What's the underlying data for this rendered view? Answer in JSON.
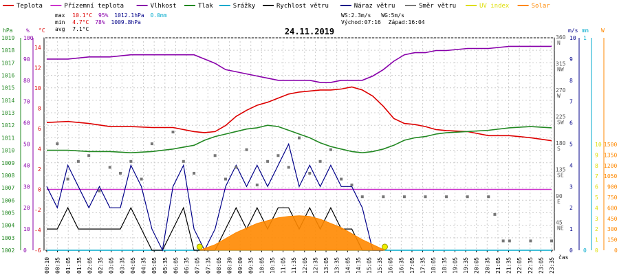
{
  "legend": [
    {
      "label": "Teplota",
      "color": "#dd0000"
    },
    {
      "label": "Přízemní teplota",
      "color": "#cc33cc"
    },
    {
      "label": "Vlhkost",
      "color": "#8800aa"
    },
    {
      "label": "Tlak",
      "color": "#228822"
    },
    {
      "label": "Srážky",
      "color": "#00aacc"
    },
    {
      "label": "Rychlost větru",
      "color": "#000000"
    },
    {
      "label": "Náraz větru",
      "color": "#000088"
    },
    {
      "label": "Směr větru",
      "color": "#777777"
    },
    {
      "label": "UV index",
      "color": "#dddd00"
    },
    {
      "label": "Solar",
      "color": "#ff8800"
    }
  ],
  "stats": {
    "max_label": "max",
    "min_label": "min",
    "avg_label": "avg",
    "temp_max": "10.1°C",
    "hum_max": "95%",
    "press_max": "1012.1hPa",
    "rain_max": "0.0mm",
    "temp_min": "4.7°C",
    "hum_min": "78%",
    "press_min": "1009.8hPa",
    "temp_avg": "7.1°C",
    "ws": "WS:2.3m/s",
    "wg": "WG:5m/s",
    "sunrise": "Východ:07:16",
    "sunset": "Západ:16:04"
  },
  "chart_data": {
    "type": "line",
    "title": "24.11.2019",
    "xlabel": "čas",
    "x_ticks": [
      "00:10",
      "00:35",
      "01:05",
      "01:35",
      "02:05",
      "02:35",
      "03:05",
      "03:35",
      "04:05",
      "04:35",
      "05:05",
      "05:35",
      "06:05",
      "06:35",
      "07:05",
      "07:35",
      "08:05",
      "08:39",
      "09:09",
      "09:35",
      "10:05",
      "10:35",
      "11:05",
      "11:35",
      "12:05",
      "12:35",
      "13:05",
      "13:35",
      "14:05",
      "14:35",
      "15:05",
      "15:35",
      "16:05",
      "16:35",
      "17:05",
      "17:35",
      "18:05",
      "18:35",
      "19:05",
      "19:35",
      "20:05",
      "20:35",
      "21:05",
      "21:35",
      "22:05",
      "22:35",
      "23:05",
      "23:35"
    ],
    "axes": {
      "pressure": {
        "unit": "hPa",
        "range": [
          1002,
          1019
        ],
        "ticks": [
          "1019",
          "1018",
          "1017",
          "1016",
          "1015",
          "1014",
          "1013",
          "1012",
          "1011",
          "1010",
          "1009",
          "1008",
          "1007",
          "1006",
          "1005",
          "1004",
          "1003",
          "1002"
        ]
      },
      "humidity": {
        "unit": "%",
        "range": [
          0,
          100
        ],
        "ticks": [
          "100",
          "90",
          "80",
          "70",
          "60",
          "50",
          "40",
          "30",
          "20",
          "10",
          "0"
        ]
      },
      "temperature": {
        "unit": "°C",
        "range": [
          -6,
          14
        ],
        "ticks": [
          "14",
          "12",
          "10",
          "8",
          "6",
          "4",
          "2",
          "0",
          "-2",
          "-4",
          "-6"
        ]
      },
      "direction": {
        "ticks": [
          {
            "deg": "360",
            "dir": "N"
          },
          {
            "deg": "315",
            "dir": "NW"
          },
          {
            "deg": "270",
            "dir": "W"
          },
          {
            "deg": "225",
            "dir": "SW"
          },
          {
            "deg": "180",
            "dir": "S"
          },
          {
            "deg": "135",
            "dir": "SE"
          },
          {
            "deg": "90",
            "dir": "E"
          },
          {
            "deg": "45",
            "dir": "NE"
          }
        ]
      },
      "wind": {
        "unit": "m/s",
        "range": [
          0,
          10
        ],
        "ticks": [
          "10",
          "9",
          "8",
          "7",
          "6",
          "5",
          "4",
          "3",
          "2",
          "1",
          "0"
        ]
      },
      "rain": {
        "unit": "mm",
        "ticks": [
          "1",
          "0"
        ]
      },
      "solar": {
        "unit": "W",
        "range": [
          0,
          2100
        ],
        "ticks": [
          "1500",
          "1350",
          "1200",
          "1050",
          "900",
          "750",
          "600",
          "450",
          "300",
          "150",
          "0"
        ]
      }
    },
    "series": [
      {
        "name": "Teplota",
        "axis": "temperature",
        "x": [
          0,
          1,
          2,
          3,
          4,
          5,
          6,
          7,
          7.5,
          8,
          8.5,
          9,
          9.5,
          10,
          10.5,
          11,
          11.5,
          12,
          12.5,
          13,
          13.5,
          14,
          14.5,
          15,
          15.5,
          16,
          16.5,
          17,
          17.5,
          18,
          18.5,
          19,
          20,
          21,
          22,
          23,
          24
        ],
        "values": [
          6.6,
          6.7,
          6.5,
          6.2,
          6.2,
          6.1,
          6.1,
          5.7,
          5.6,
          5.7,
          6.3,
          7.2,
          7.8,
          8.3,
          8.6,
          9.0,
          9.4,
          9.6,
          9.7,
          9.8,
          9.8,
          9.9,
          10.1,
          9.8,
          9.2,
          8.2,
          7.0,
          6.5,
          6.4,
          6.2,
          5.9,
          5.8,
          5.7,
          5.3,
          5.3,
          5.1,
          4.8
        ]
      },
      {
        "name": "Přízemní teplota",
        "axis": "temperature",
        "x": [
          0,
          24
        ],
        "values": [
          0,
          0
        ]
      },
      {
        "name": "Vlhkost",
        "axis": "humidity",
        "x": [
          0,
          1,
          2,
          3,
          4,
          5,
          6,
          7,
          7.5,
          8,
          8.5,
          9,
          9.5,
          10,
          10.5,
          11,
          11.5,
          12,
          12.5,
          13,
          13.5,
          14,
          14.5,
          15,
          15.5,
          16,
          16.5,
          17,
          17.5,
          18,
          18.5,
          19,
          20,
          21,
          22,
          23,
          24
        ],
        "values": [
          90,
          90,
          91,
          91,
          92,
          92,
          92,
          92,
          90,
          88,
          85,
          84,
          83,
          82,
          81,
          80,
          80,
          80,
          80,
          79,
          79,
          80,
          80,
          80,
          82,
          85,
          89,
          92,
          93,
          93,
          94,
          94,
          95,
          95,
          96,
          96,
          96
        ]
      },
      {
        "name": "Tlak",
        "axis": "pressure",
        "x": [
          0,
          1,
          2,
          3,
          4,
          5,
          6,
          7,
          7.5,
          8,
          8.5,
          9,
          9.5,
          10,
          10.5,
          11,
          11.5,
          12,
          12.5,
          13,
          13.5,
          14,
          14.5,
          15,
          15.5,
          16,
          16.5,
          17,
          17.5,
          18,
          18.5,
          19,
          20,
          21,
          22,
          23,
          24
        ],
        "values": [
          1010.0,
          1010.0,
          1009.9,
          1009.9,
          1009.8,
          1009.9,
          1010.1,
          1010.4,
          1010.8,
          1011.1,
          1011.3,
          1011.5,
          1011.7,
          1011.8,
          1012.0,
          1011.9,
          1011.6,
          1011.3,
          1011.0,
          1010.6,
          1010.3,
          1010.1,
          1009.9,
          1009.8,
          1009.9,
          1010.1,
          1010.4,
          1010.8,
          1011.0,
          1011.1,
          1011.3,
          1011.4,
          1011.5,
          1011.6,
          1011.8,
          1011.9,
          1011.8
        ]
      },
      {
        "name": "Srážky",
        "axis": "rain",
        "x": [
          0,
          24
        ],
        "values": [
          0,
          0
        ]
      },
      {
        "name": "Rychlost větru",
        "axis": "wind",
        "x": [
          0,
          0.5,
          1,
          1.5,
          2,
          2.5,
          3,
          3.5,
          4,
          4.5,
          5,
          5.5,
          6,
          6.5,
          7,
          7.5,
          8,
          8.5,
          9,
          9.5,
          10,
          10.5,
          11,
          11.5,
          12,
          12.5,
          13,
          13.5,
          14,
          14.5,
          15,
          15.5,
          16
        ],
        "values": [
          1,
          1,
          2,
          1,
          1,
          1,
          1,
          1,
          2,
          1,
          0,
          0,
          1,
          2,
          0,
          0,
          0,
          1,
          2,
          1,
          2,
          1,
          2,
          2,
          1,
          2,
          1,
          2,
          1,
          1,
          0,
          0,
          0
        ]
      },
      {
        "name": "Náraz větru",
        "axis": "wind",
        "x": [
          0,
          0.5,
          1,
          1.5,
          2,
          2.5,
          3,
          3.5,
          4,
          4.5,
          5,
          5.5,
          6,
          6.5,
          7,
          7.5,
          8,
          8.5,
          9,
          9.5,
          10,
          10.5,
          11,
          11.5,
          12,
          12.5,
          13,
          13.5,
          14,
          14.5,
          15,
          15.5,
          16
        ],
        "values": [
          3,
          2,
          4,
          3,
          2,
          3,
          2,
          2,
          4,
          3,
          1,
          0,
          3,
          4,
          1,
          0,
          1,
          3,
          4,
          3,
          4,
          3,
          4,
          5,
          3,
          4,
          3,
          4,
          3,
          3,
          2,
          0,
          0
        ]
      },
      {
        "name": "Směr větru",
        "axis": "direction",
        "x": [
          0.5,
          1,
          1.5,
          2,
          2.5,
          3,
          3.5,
          4,
          4.5,
          5,
          6,
          6.5,
          7,
          8,
          8.5,
          9,
          9.5,
          10,
          10.5,
          11,
          11.5,
          12,
          12.5,
          13,
          13.5,
          14,
          14.5,
          15,
          16,
          17,
          18,
          19,
          20,
          21,
          21.3,
          21.7,
          22,
          23,
          24
        ],
        "values": [
          180,
          120,
          150,
          160,
          100,
          140,
          130,
          150,
          120,
          180,
          200,
          150,
          130,
          160,
          120,
          140,
          170,
          110,
          150,
          160,
          140,
          190,
          130,
          150,
          170,
          120,
          110,
          90,
          90,
          90,
          90,
          90,
          90,
          90,
          60,
          15,
          15,
          15,
          15
        ]
      },
      {
        "name": "UV index",
        "axis": "solar",
        "x": [
          7.27,
          16.07
        ],
        "values": [
          0,
          0
        ]
      },
      {
        "name": "Solar",
        "axis": "solar",
        "x": [
          7.27,
          8,
          9,
          10,
          11,
          11.5,
          12,
          12.5,
          13,
          14,
          15,
          16.07
        ],
        "values": [
          0,
          80,
          250,
          380,
          460,
          480,
          490,
          480,
          440,
          320,
          150,
          0
        ]
      }
    ],
    "grid": true,
    "legend_position": "top"
  }
}
